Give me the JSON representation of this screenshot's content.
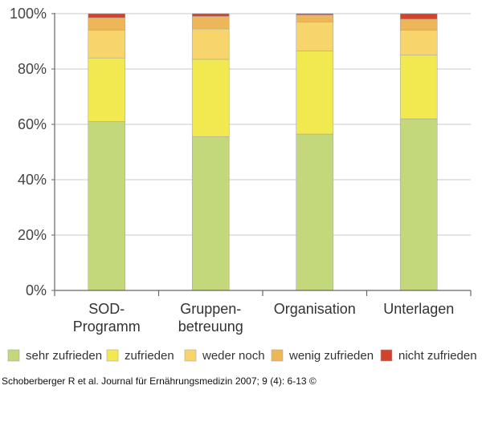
{
  "chart_data": {
    "type": "bar",
    "stacked": true,
    "percent": true,
    "categories": [
      [
        "SOD-",
        "Programm"
      ],
      [
        "Gruppen-",
        "betreuung"
      ],
      [
        "Organisation"
      ],
      [
        "Unterlagen"
      ]
    ],
    "series": [
      {
        "name": "sehr zufrieden",
        "color": "#c3d77b",
        "values": [
          61,
          55.5,
          56.5,
          62
        ]
      },
      {
        "name": "zufrieden",
        "color": "#f2e84f",
        "values": [
          23,
          28,
          30,
          23
        ]
      },
      {
        "name": "weder noch",
        "color": "#f7d56c",
        "values": [
          10,
          11,
          10.5,
          9
        ]
      },
      {
        "name": "wenig zufrieden",
        "color": "#edb659",
        "values": [
          4.5,
          4.5,
          2.5,
          4
        ]
      },
      {
        "name": "nicht zufrieden",
        "color": "#d0432d",
        "values": [
          1.5,
          1,
          0.5,
          2
        ]
      }
    ],
    "yticks": [
      "0%",
      "20%",
      "40%",
      "60%",
      "80%",
      "100%"
    ],
    "ylim": [
      0,
      100
    ],
    "grid": true,
    "legend_position": "bottom"
  },
  "caption": "Schoberberger R et al. Journal für Ernährungsmedizin 2007; 9 (4): 6-13 ©"
}
